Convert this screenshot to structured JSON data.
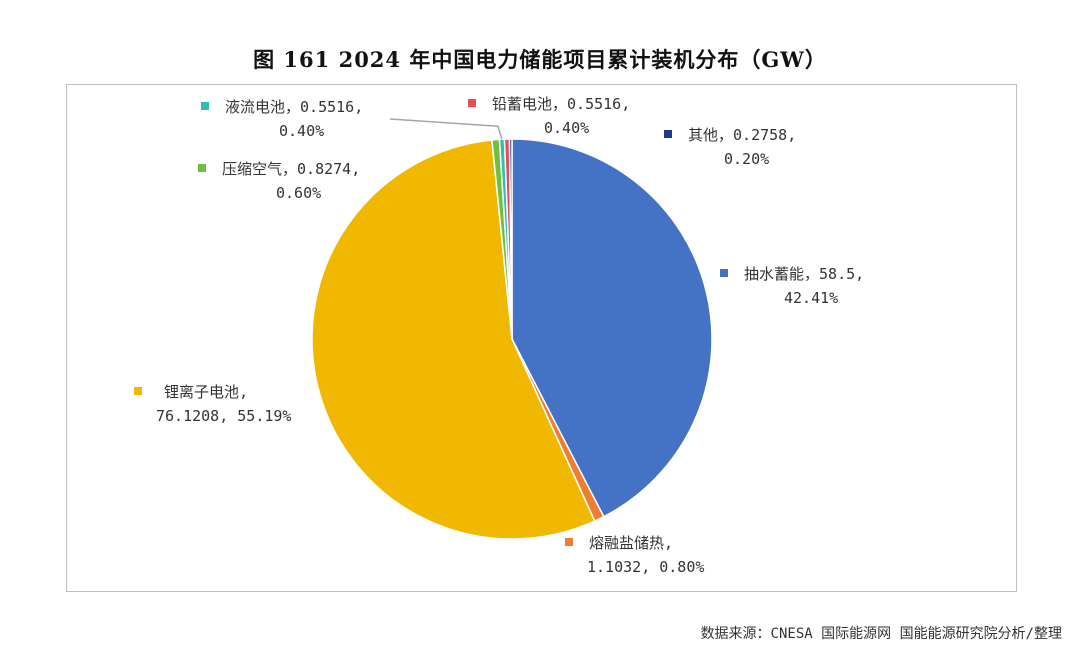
{
  "title": "图 161 2024 年中国电力储能项目累计装机分布（GW）",
  "source": "数据来源：CNESA 国际能源网 国能能源研究院分析/整理",
  "chart_data": {
    "type": "pie",
    "title": "图 161 2024 年中国电力储能项目累计装机分布（GW）",
    "unit": "GW",
    "slices": [
      {
        "name": "抽水蓄能",
        "value": 58.5,
        "value_label": "58.5",
        "percent": 42.41,
        "percent_label": "42.41%",
        "color": "#4472C4"
      },
      {
        "name": "熔融盐储热",
        "value": 1.1032,
        "value_label": "1.1032",
        "percent": 0.8,
        "percent_label": "0.80%",
        "color": "#ED7D31"
      },
      {
        "name": "锂离子电池",
        "value": 76.1208,
        "value_label": "76.1208",
        "percent": 55.19,
        "percent_label": "55.19%",
        "color": "#F0B800"
      },
      {
        "name": "压缩空气",
        "value": 0.8274,
        "value_label": "0.8274",
        "percent": 0.6,
        "percent_label": "0.60%",
        "color": "#70C040"
      },
      {
        "name": "液流电池",
        "value": 0.5516,
        "value_label": "0.5516",
        "percent": 0.4,
        "percent_label": "0.40%",
        "color": "#2EBFB0"
      },
      {
        "name": "铅蓄电池",
        "value": 0.5516,
        "value_label": "0.5516",
        "percent": 0.4,
        "percent_label": "0.40%",
        "color": "#E0505A"
      },
      {
        "name": "其他",
        "value": 0.2758,
        "value_label": "0.2758",
        "percent": 0.2,
        "percent_label": "0.20%",
        "color": "#1F3C88"
      }
    ],
    "start_angle": "top",
    "direction": "clockwise"
  }
}
